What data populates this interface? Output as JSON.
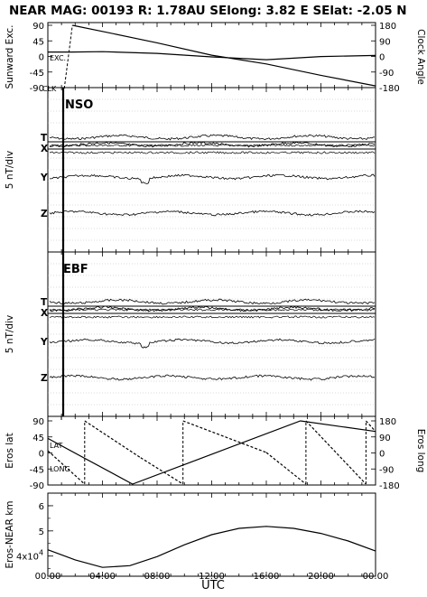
{
  "header": {
    "title": "NEAR MAG: 00193  R: 1.78AU  SElong:     3.82 E  SElat:   -2.05 N"
  },
  "x_axis": {
    "label": "UTC",
    "ticks": [
      "00:00",
      "04:00",
      "08:00",
      "12:00",
      "16:00",
      "20:00",
      "00:00"
    ],
    "hours": [
      0,
      4,
      8,
      12,
      16,
      20,
      24
    ]
  },
  "panels": {
    "sunward": {
      "left_label": "Sunward Exc.",
      "right_label": "Clock Angle",
      "left_ticks": [
        "90",
        "45",
        "0",
        "-45",
        "-90"
      ],
      "right_ticks": [
        "180",
        "90",
        "0",
        "-90",
        "-180"
      ],
      "annotations": {
        "exc": "EXC.",
        "clk": "CLK"
      }
    },
    "nso": {
      "title": "NSO",
      "ylabel": "5 nT/div",
      "traces": [
        "T",
        "X",
        "Y",
        "Z"
      ]
    },
    "ebf": {
      "title": "EBF",
      "ylabel": "5 nT/div",
      "traces": [
        "T",
        "X",
        "Y",
        "Z"
      ]
    },
    "eros": {
      "left_label": "Eros lat",
      "right_label": "Eros long",
      "left_ticks": [
        "90",
        "45",
        "0",
        "-45",
        "-90"
      ],
      "right_ticks": [
        "180",
        "90",
        "0",
        "-90",
        "-180"
      ],
      "annotations": {
        "lat": "LAT",
        "long": "LONG"
      }
    },
    "range": {
      "left_label": "Eros-NEAR km",
      "ticks": [
        "6",
        "5",
        "4x10"
      ],
      "tick_exp": "4"
    }
  },
  "chart_data": [
    {
      "type": "line",
      "panel": "Sunward Exc. / Clock Angle",
      "x": [
        0,
        1.2,
        1.8,
        4,
        8,
        12,
        16,
        20,
        24
      ],
      "series": [
        {
          "name": "EXC.",
          "axis": "left",
          "ylim": [
            -90,
            90
          ],
          "values": [
            14,
            14,
            14,
            15,
            10,
            0,
            -8,
            1,
            4
          ]
        },
        {
          "name": "CLK",
          "axis": "right",
          "ylim": [
            -180,
            180
          ],
          "values": [
            -180,
            -180,
            180,
            145,
            80,
            10,
            -40,
            -105,
            -165
          ]
        }
      ]
    },
    {
      "type": "line",
      "panel": "NSO",
      "unit": "5 nT/div",
      "x_range": [
        0,
        24
      ],
      "series": [
        {
          "name": "T"
        },
        {
          "name": "X"
        },
        {
          "name": "Y"
        },
        {
          "name": "Z"
        }
      ]
    },
    {
      "type": "line",
      "panel": "EBF",
      "unit": "5 nT/div",
      "x_range": [
        0,
        24
      ],
      "series": [
        {
          "name": "T"
        },
        {
          "name": "X"
        },
        {
          "name": "Y"
        },
        {
          "name": "Z"
        }
      ]
    },
    {
      "type": "line",
      "panel": "Eros lat / Eros long",
      "series": [
        {
          "name": "LAT",
          "axis": "left",
          "ylim": [
            -90,
            90
          ],
          "x": [
            0,
            6.2,
            18.5,
            24
          ],
          "values": [
            40,
            -90,
            90,
            60
          ]
        },
        {
          "name": "LONG",
          "axis": "right",
          "ylim": [
            -180,
            180
          ],
          "x": [
            0,
            2.7,
            2.7,
            6.8,
            9.9,
            9.9,
            16,
            18.9,
            18.9,
            23.3,
            23.3,
            24
          ],
          "values": [
            10,
            -180,
            180,
            -30,
            -180,
            180,
            0,
            -180,
            180,
            -180,
            180,
            120
          ]
        }
      ]
    },
    {
      "type": "line",
      "panel": "Eros-NEAR km",
      "x": [
        0,
        2,
        4,
        6,
        8,
        10,
        12,
        14,
        16,
        18,
        20,
        22,
        24
      ],
      "series": [
        {
          "name": "Eros-NEAR",
          "ylim": [
            3.2,
            6.5
          ],
          "values": [
            4.25,
            3.85,
            3.55,
            3.62,
            3.98,
            4.45,
            4.85,
            5.1,
            5.18,
            5.1,
            4.9,
            4.6,
            4.2
          ]
        }
      ]
    }
  ]
}
